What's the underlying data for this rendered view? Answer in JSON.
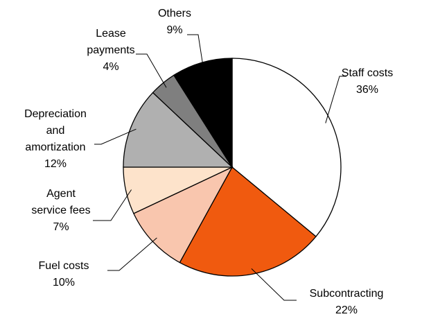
{
  "chart_data": {
    "type": "pie",
    "categories": [
      "Staff costs",
      "Subcontracting",
      "Fuel costs",
      "Agent service fees",
      "Depreciation and amortization",
      "Lease payments",
      "Others"
    ],
    "values": [
      36,
      22,
      10,
      7,
      12,
      4,
      9
    ],
    "value_labels": [
      "36%",
      "22%",
      "10%",
      "7%",
      "12%",
      "4%",
      "9%"
    ],
    "colors": [
      "#ffffff",
      "#f05a0f",
      "#f9c6ae",
      "#fde3cb",
      "#b0b0b0",
      "#7f7f7f",
      "#000000"
    ]
  }
}
